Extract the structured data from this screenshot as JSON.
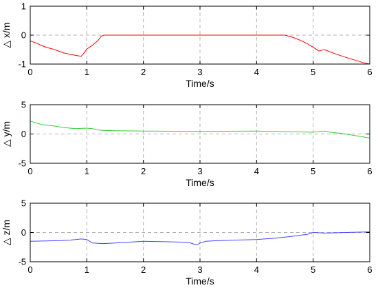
{
  "chart_data": [
    {
      "type": "line",
      "xlabel": "Time/s",
      "ylabel": "△ x/m",
      "xlim": [
        0,
        6
      ],
      "ylim": [
        -1,
        1
      ],
      "xticks": [
        0,
        1,
        2,
        3,
        4,
        5,
        6
      ],
      "yticks": [
        -1,
        0,
        1
      ],
      "grid": true,
      "color": "#ff0000",
      "series": [
        {
          "x": [
            0,
            0.1,
            0.2,
            0.3,
            0.4,
            0.5,
            0.6,
            0.7,
            0.8,
            0.9,
            0.95,
            1.0,
            1.1,
            1.2,
            1.25,
            1.3,
            1.4,
            2.0,
            3.0,
            4.0,
            4.5,
            4.6,
            4.7,
            4.8,
            4.9,
            5.0,
            5.05,
            5.1,
            5.2,
            5.3,
            5.4,
            5.5,
            5.6,
            5.7,
            5.8,
            5.9,
            6.0
          ],
          "y": [
            -0.2,
            -0.27,
            -0.36,
            -0.43,
            -0.48,
            -0.55,
            -0.62,
            -0.66,
            -0.7,
            -0.73,
            -0.62,
            -0.48,
            -0.35,
            -0.18,
            -0.05,
            0,
            0,
            0,
            0,
            0,
            0,
            -0.05,
            -0.12,
            -0.2,
            -0.3,
            -0.42,
            -0.48,
            -0.55,
            -0.5,
            -0.58,
            -0.65,
            -0.72,
            -0.78,
            -0.84,
            -0.9,
            -0.96,
            -1.0
          ]
        }
      ]
    },
    {
      "type": "line",
      "xlabel": "Time/s",
      "ylabel": "△ y/m",
      "xlim": [
        0,
        6
      ],
      "ylim": [
        -5,
        5
      ],
      "xticks": [
        0,
        1,
        2,
        3,
        4,
        5,
        6
      ],
      "yticks": [
        -5,
        0,
        5
      ],
      "grid": true,
      "color": "#33cc33",
      "series": [
        {
          "x": [
            0,
            0.2,
            0.4,
            0.6,
            0.8,
            0.9,
            1.0,
            1.1,
            1.2,
            1.3,
            1.5,
            2.0,
            3.0,
            4.0,
            4.5,
            5.0,
            5.2,
            5.3,
            5.5,
            5.7,
            6.0
          ],
          "y": [
            2.2,
            1.6,
            1.4,
            1.1,
            0.9,
            0.95,
            1.0,
            0.9,
            0.7,
            0.6,
            0.55,
            0.5,
            0.45,
            0.5,
            0.4,
            0.3,
            0.5,
            0.3,
            0.1,
            -0.2,
            -0.7
          ]
        }
      ]
    },
    {
      "type": "line",
      "xlabel": "Time/s",
      "ylabel": "△ z/m",
      "xlim": [
        0,
        6
      ],
      "ylim": [
        -5,
        5
      ],
      "xticks": [
        0,
        1,
        2,
        3,
        4,
        5,
        6
      ],
      "yticks": [
        -5,
        0,
        5
      ],
      "grid": true,
      "color": "#4444ff",
      "series": [
        {
          "x": [
            0,
            0.5,
            0.7,
            0.9,
            1.0,
            1.1,
            1.3,
            1.5,
            2.0,
            2.5,
            2.8,
            2.9,
            2.95,
            3.0,
            3.1,
            3.3,
            3.6,
            4.0,
            4.3,
            4.6,
            4.9,
            5.0,
            5.2,
            5.6,
            6.0
          ],
          "y": [
            -1.5,
            -1.4,
            -1.3,
            -1.1,
            -1.2,
            -1.8,
            -1.9,
            -1.8,
            -1.5,
            -1.6,
            -1.7,
            -2.0,
            -2.1,
            -1.8,
            -1.5,
            -1.4,
            -1.3,
            -1.2,
            -1.0,
            -0.7,
            -0.3,
            0.0,
            -0.1,
            0.0,
            0.1
          ]
        }
      ]
    }
  ]
}
